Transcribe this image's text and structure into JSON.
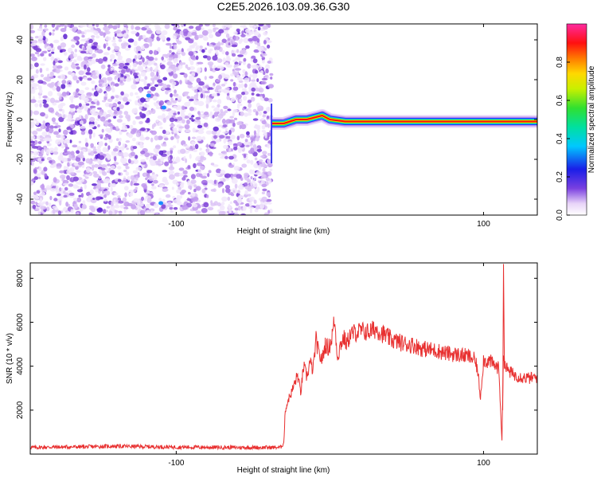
{
  "title": "C2E5.2026.103.09.36.G30",
  "chart_data": [
    {
      "type": "heatmap",
      "xlabel": "Height of straight line (km)",
      "ylabel": "Frequency (Hz)",
      "xlim": [
        -195,
        135
      ],
      "ylim": [
        -48,
        48
      ],
      "xticks": [
        -100,
        100
      ],
      "yticks": [
        -40,
        -20,
        0,
        20,
        40
      ],
      "colorbar": {
        "label": "Normalized spectral amplitude",
        "range": [
          0,
          1
        ],
        "ticks": [
          0.0,
          0.2,
          0.4,
          0.6,
          0.8
        ]
      },
      "ridge": [
        {
          "x": -38,
          "y": -2
        },
        {
          "x": -30,
          "y": -2
        },
        {
          "x": -22,
          "y": 0
        },
        {
          "x": -15,
          "y": 0
        },
        {
          "x": -10,
          "y": 1
        },
        {
          "x": -5,
          "y": 2
        },
        {
          "x": 0,
          "y": 0
        },
        {
          "x": 10,
          "y": -1
        },
        {
          "x": 30,
          "y": -1
        },
        {
          "x": 60,
          "y": -1
        },
        {
          "x": 90,
          "y": -1
        },
        {
          "x": 108,
          "y": -1
        },
        {
          "x": 135,
          "y": -1
        }
      ],
      "noise_region_x": [
        -195,
        -38
      ]
    },
    {
      "type": "line",
      "xlabel": "Height of straight line (km)",
      "ylabel": "SNR (10 * v/v)",
      "xlim": [
        -195,
        135
      ],
      "ylim": [
        0,
        8700
      ],
      "xticks": [
        -100,
        100
      ],
      "yticks": [
        2000,
        4000,
        6000,
        8000
      ],
      "series": [
        {
          "color": "#e83030",
          "x": [
            -195,
            -180,
            -160,
            -140,
            -120,
            -100,
            -80,
            -60,
            -40,
            -32,
            -30,
            -29,
            -27,
            -25,
            -23,
            -21,
            -19,
            -17,
            -15,
            -13,
            -11,
            -9,
            -7,
            -5,
            -3,
            -1,
            1,
            3,
            5,
            7,
            9,
            11,
            13,
            15,
            20,
            25,
            30,
            35,
            40,
            45,
            50,
            55,
            60,
            65,
            70,
            75,
            80,
            85,
            90,
            94,
            96,
            98,
            100,
            102,
            104,
            106,
            108,
            110,
            111,
            112,
            113,
            114,
            116,
            118,
            120,
            125,
            130,
            135
          ],
          "y": [
            300,
            320,
            330,
            360,
            340,
            320,
            310,
            300,
            300,
            310,
            500,
            2000,
            2500,
            2800,
            3200,
            3600,
            2800,
            4000,
            3500,
            4200,
            3800,
            5200,
            4500,
            4300,
            5000,
            4800,
            5200,
            6100,
            4400,
            5000,
            5300,
            5000,
            5400,
            5500,
            5600,
            5550,
            5700,
            5450,
            5200,
            5100,
            5000,
            4950,
            4800,
            4750,
            4700,
            4600,
            4550,
            4500,
            4450,
            4300,
            3900,
            2600,
            4300,
            4200,
            4250,
            4100,
            4000,
            3900,
            2200,
            600,
            4800,
            4000,
            3800,
            3700,
            3600,
            3500,
            3450,
            3500
          ]
        }
      ]
    }
  ],
  "colors": {
    "noise_palette": [
      "#f1e6fb",
      "#dcc3f6",
      "#c29aee",
      "#9e67e3",
      "#7b3fd6",
      "#5a1fcf"
    ],
    "line": "#e83030"
  }
}
